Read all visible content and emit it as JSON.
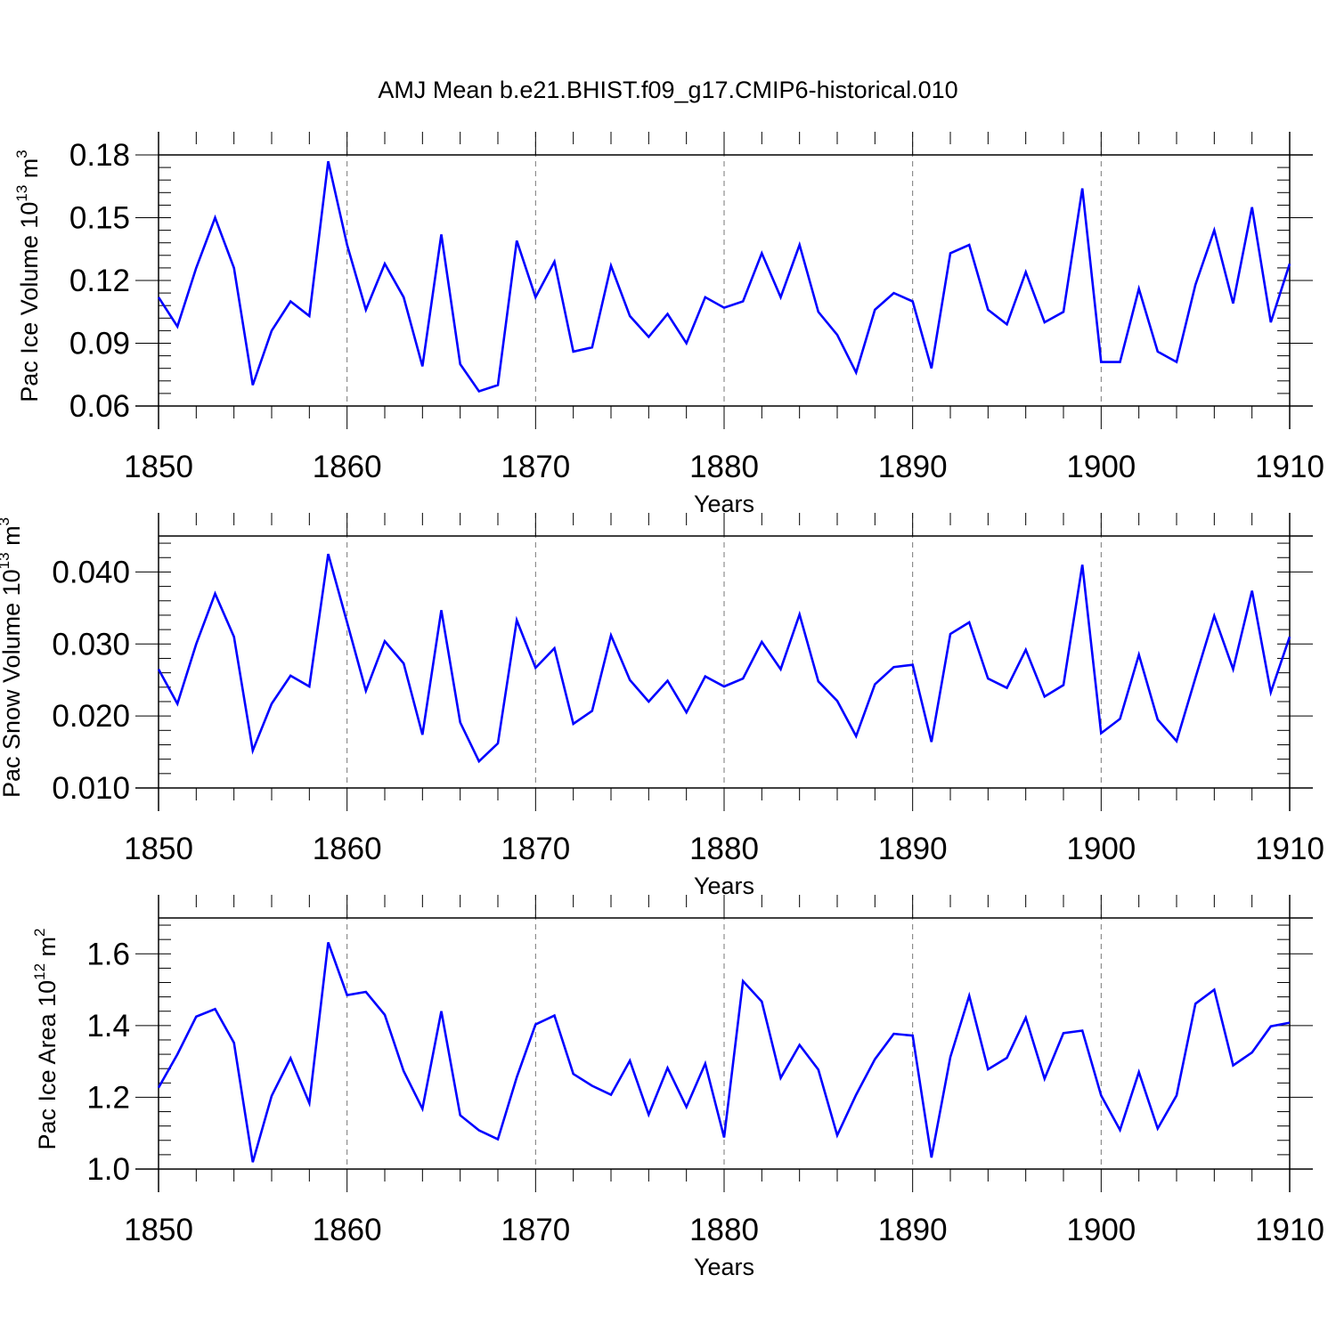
{
  "title": "AMJ Mean b.e21.BHIST.f09_g17.CMIP6-historical.010",
  "line_color": "#0000ff",
  "chart_data": [
    {
      "type": "line",
      "xlabel": "Years",
      "ylabel": {
        "pre": "Pac Ice Volume 10",
        "exp": "13",
        "mid": " m",
        "unit_exp": "3"
      },
      "xlim": [
        1850,
        1910
      ],
      "ylim": [
        0.06,
        0.18
      ],
      "x_ticks": [
        "1850",
        "1860",
        "1870",
        "1880",
        "1890",
        "1900",
        "1910"
      ],
      "y_ticks": [
        "0.06",
        "0.09",
        "0.12",
        "0.15",
        "0.18"
      ],
      "series": [
        {
          "name": "Pac Ice Volume",
          "x": [
            1850,
            1851,
            1852,
            1853,
            1854,
            1855,
            1856,
            1857,
            1858,
            1859,
            1860,
            1861,
            1862,
            1863,
            1864,
            1865,
            1866,
            1867,
            1868,
            1869,
            1870,
            1871,
            1872,
            1873,
            1874,
            1875,
            1876,
            1877,
            1878,
            1879,
            1880,
            1881,
            1882,
            1883,
            1884,
            1885,
            1886,
            1887,
            1888,
            1889,
            1890,
            1891,
            1892,
            1893,
            1894,
            1895,
            1896,
            1897,
            1898,
            1899,
            1900,
            1901,
            1902,
            1903,
            1904,
            1905,
            1906,
            1907,
            1908,
            1909,
            1910
          ],
          "values": [
            0.112,
            0.098,
            0.126,
            0.15,
            0.126,
            0.07,
            0.096,
            0.11,
            0.103,
            0.177,
            0.137,
            0.106,
            0.128,
            0.112,
            0.079,
            0.142,
            0.08,
            0.067,
            0.07,
            0.139,
            0.112,
            0.129,
            0.086,
            0.088,
            0.127,
            0.103,
            0.093,
            0.104,
            0.09,
            0.112,
            0.107,
            0.11,
            0.133,
            0.112,
            0.137,
            0.105,
            0.094,
            0.076,
            0.106,
            0.114,
            0.11,
            0.078,
            0.133,
            0.137,
            0.106,
            0.099,
            0.124,
            0.1,
            0.105,
            0.164,
            0.081,
            0.081,
            0.116,
            0.086,
            0.081,
            0.118,
            0.144,
            0.109,
            0.155,
            0.1,
            0.128
          ]
        }
      ]
    },
    {
      "type": "line",
      "xlabel": "Years",
      "ylabel": {
        "pre": "Pac Snow Volume 10",
        "exp": "13",
        "mid": " m",
        "unit_exp": "3"
      },
      "xlim": [
        1850,
        1910
      ],
      "ylim": [
        0.01,
        0.045
      ],
      "x_ticks": [
        "1850",
        "1860",
        "1870",
        "1880",
        "1890",
        "1900",
        "1910"
      ],
      "y_ticks": [
        "0.010",
        "0.020",
        "0.030",
        "0.040"
      ],
      "series": [
        {
          "name": "Pac Snow Volume",
          "x": [
            1850,
            1851,
            1852,
            1853,
            1854,
            1855,
            1856,
            1857,
            1858,
            1859,
            1860,
            1861,
            1862,
            1863,
            1864,
            1865,
            1866,
            1867,
            1868,
            1869,
            1870,
            1871,
            1872,
            1873,
            1874,
            1875,
            1876,
            1877,
            1878,
            1879,
            1880,
            1881,
            1882,
            1883,
            1884,
            1885,
            1886,
            1887,
            1888,
            1889,
            1890,
            1891,
            1892,
            1893,
            1894,
            1895,
            1896,
            1897,
            1898,
            1899,
            1900,
            1901,
            1902,
            1903,
            1904,
            1905,
            1906,
            1907,
            1908,
            1909,
            1910
          ],
          "values": [
            0.0265,
            0.0217,
            0.03,
            0.037,
            0.031,
            0.0152,
            0.0217,
            0.0256,
            0.0241,
            0.0425,
            0.033,
            0.0235,
            0.0304,
            0.0273,
            0.0174,
            0.0347,
            0.0191,
            0.0137,
            0.0162,
            0.0333,
            0.0267,
            0.0294,
            0.0189,
            0.0207,
            0.0312,
            0.025,
            0.022,
            0.0249,
            0.0205,
            0.0255,
            0.0241,
            0.0252,
            0.0303,
            0.0265,
            0.0341,
            0.0248,
            0.0221,
            0.0172,
            0.0244,
            0.0268,
            0.0271,
            0.0164,
            0.0314,
            0.033,
            0.0252,
            0.0239,
            0.0292,
            0.0227,
            0.0243,
            0.041,
            0.0176,
            0.0196,
            0.0285,
            0.0195,
            0.0165,
            0.0253,
            0.0339,
            0.0265,
            0.0374,
            0.0233,
            0.031
          ]
        }
      ]
    },
    {
      "type": "line",
      "xlabel": "Years",
      "ylabel": {
        "pre": "Pac Ice Area 10",
        "exp": "12",
        "mid": " m",
        "unit_exp": "2"
      },
      "xlim": [
        1850,
        1910
      ],
      "ylim": [
        1.0,
        1.7
      ],
      "x_ticks": [
        "1850",
        "1860",
        "1870",
        "1880",
        "1890",
        "1900",
        "1910"
      ],
      "y_ticks": [
        "1.0",
        "1.2",
        "1.4",
        "1.6"
      ],
      "series": [
        {
          "name": "Pac Ice Area",
          "x": [
            1850,
            1851,
            1852,
            1853,
            1854,
            1855,
            1856,
            1857,
            1858,
            1859,
            1860,
            1861,
            1862,
            1863,
            1864,
            1865,
            1866,
            1867,
            1868,
            1869,
            1870,
            1871,
            1872,
            1873,
            1874,
            1875,
            1876,
            1877,
            1878,
            1879,
            1880,
            1881,
            1882,
            1883,
            1884,
            1885,
            1886,
            1887,
            1888,
            1889,
            1890,
            1891,
            1892,
            1893,
            1894,
            1895,
            1896,
            1897,
            1898,
            1899,
            1900,
            1901,
            1902,
            1903,
            1904,
            1905,
            1906,
            1907,
            1908,
            1909,
            1910
          ],
          "values": [
            1.227,
            1.32,
            1.425,
            1.446,
            1.352,
            1.019,
            1.204,
            1.309,
            1.184,
            1.632,
            1.485,
            1.494,
            1.43,
            1.273,
            1.168,
            1.44,
            1.15,
            1.108,
            1.083,
            1.256,
            1.403,
            1.428,
            1.265,
            1.232,
            1.207,
            1.302,
            1.152,
            1.282,
            1.173,
            1.294,
            1.088,
            1.524,
            1.467,
            1.254,
            1.346,
            1.277,
            1.094,
            1.207,
            1.306,
            1.377,
            1.372,
            1.032,
            1.312,
            1.483,
            1.278,
            1.31,
            1.422,
            1.252,
            1.379,
            1.386,
            1.205,
            1.109,
            1.27,
            1.113,
            1.205,
            1.461,
            1.5,
            1.289,
            1.325,
            1.398,
            1.408
          ]
        }
      ]
    }
  ]
}
